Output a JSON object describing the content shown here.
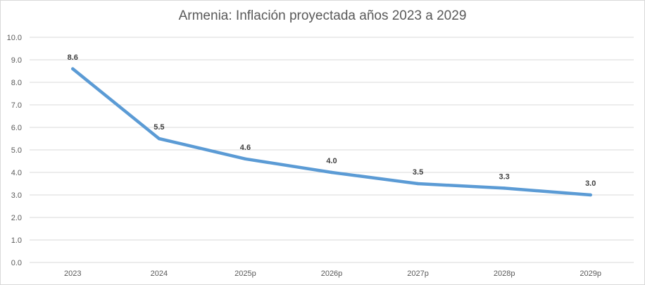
{
  "chart_data": {
    "type": "line",
    "title": "Armenia: Inflación proyectada años 2023 a 2029",
    "categories": [
      "2023",
      "2024",
      "2025p",
      "2026p",
      "2027p",
      "2028p",
      "2029p"
    ],
    "series": [
      {
        "values": [
          8.6,
          5.5,
          4.6,
          4.0,
          3.5,
          3.3,
          3.0
        ]
      }
    ],
    "data_labels": [
      "8.6",
      "5.5",
      "4.6",
      "4.0",
      "3.5",
      "3.3",
      "3.0"
    ],
    "yticks": [
      "0.0",
      "1.0",
      "2.0",
      "3.0",
      "4.0",
      "5.0",
      "6.0",
      "7.0",
      "8.0",
      "9.0",
      "10.0"
    ],
    "ylim": [
      0,
      10
    ],
    "xlabel": "",
    "ylabel": "",
    "grid": true,
    "legend": "none",
    "colors": {
      "line": "#5b9bd5",
      "grid": "#d9d9d9",
      "text": "#595959"
    }
  }
}
